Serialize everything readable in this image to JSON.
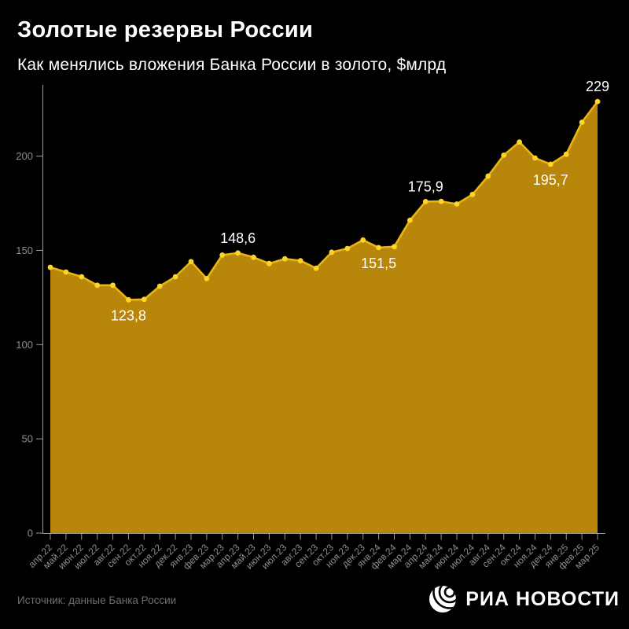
{
  "header": {
    "title": "Золотые резервы России",
    "subtitle": "Как менялись вложения Банка России в золото, $млрд"
  },
  "footer": {
    "source": "Источник: данные Банка России",
    "logo_text": "РИА НОВОСТИ",
    "logo_icon": "ria-globe-icon"
  },
  "colors": {
    "background": "#000000",
    "area_fill": "#b8860b",
    "line": "#e9b50e",
    "dot": "#ffd42a",
    "axis": "#9a9a9a",
    "tick_label": "#8d8d8d",
    "annotation": "#ffffff"
  },
  "chart_data": {
    "type": "area",
    "title": "Золотые резервы России",
    "subtitle": "Как менялись вложения Банка России в золото, $млрд",
    "unit": "$млрд",
    "legend": "none",
    "grid": false,
    "ylim": [
      0,
      235
    ],
    "yticks": [
      0,
      50,
      100,
      150,
      200
    ],
    "x": [
      "апр.22",
      "май.22",
      "июн.22",
      "июл.22",
      "авг.22",
      "сен.22",
      "окт.22",
      "ноя.22",
      "дек.22",
      "янв.23",
      "фев.23",
      "мар.23",
      "апр.23",
      "май.23",
      "июн.23",
      "июл.23",
      "авг.23",
      "сен.23",
      "окт.23",
      "ноя.23",
      "дек.23",
      "янв.24",
      "фев.24",
      "мар.24",
      "апр.24",
      "май.24",
      "июн.24",
      "июл.24",
      "авг.24",
      "сен.24",
      "окт.24",
      "ноя.24",
      "дек.24",
      "янв.25",
      "фев.25",
      "мар.25"
    ],
    "values": [
      141,
      138.5,
      136,
      131.5,
      131.5,
      123.8,
      124,
      131,
      136,
      144,
      135,
      147.5,
      148.6,
      146.3,
      143,
      145.5,
      144.5,
      140.5,
      149,
      151,
      155.5,
      151.5,
      152,
      166,
      175.9,
      176,
      174.6,
      179.7,
      189.4,
      200.5,
      207.5,
      199,
      195.7,
      201,
      218,
      229
    ],
    "annotations": [
      {
        "month": "сен.22",
        "label": "123,8",
        "placement": "below"
      },
      {
        "month": "апр.23",
        "label": "148,6",
        "placement": "above"
      },
      {
        "month": "янв.24",
        "label": "151,5",
        "placement": "below"
      },
      {
        "month": "апр.24",
        "label": "175,9",
        "placement": "above"
      },
      {
        "month": "дек.24",
        "label": "195,7",
        "placement": "below"
      },
      {
        "month": "мар.25",
        "label": "229",
        "placement": "above"
      }
    ]
  }
}
